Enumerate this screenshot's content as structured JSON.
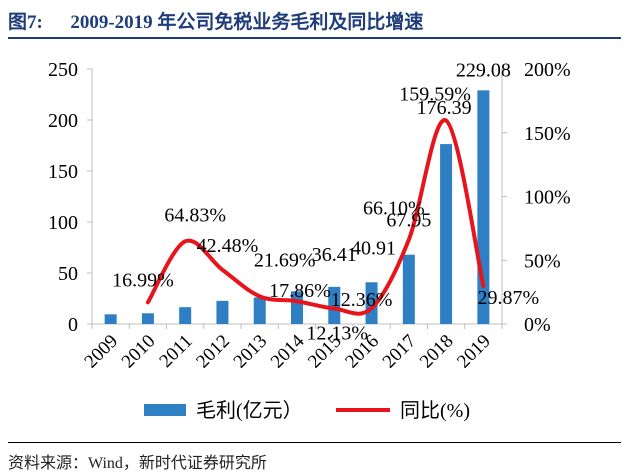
{
  "figure": {
    "label": "图7:",
    "title": "2009-2019 年公司免税业务毛利及同比增速",
    "title_color": "#1f3d7a",
    "rule_color": "#1f3d7a"
  },
  "source": "资料来源：Wind，新时代证券研究所",
  "chart_data": {
    "type": "bar",
    "categories": [
      "2009",
      "2010",
      "2011",
      "2012",
      "2013",
      "2014",
      "2015",
      "2016",
      "2017",
      "2018",
      "2019"
    ],
    "series": [
      {
        "name": "毛利(亿元）",
        "type": "bar",
        "axis": "left",
        "color": "#2f7fc4",
        "values": [
          9.5,
          10.5,
          16.5,
          22.7,
          26.0,
          32.0,
          36.41,
          40.91,
          67.95,
          176.39,
          229.08
        ],
        "labels": [
          "",
          "",
          "",
          "",
          "",
          "",
          "36.41",
          "40.91",
          "67.95",
          "176.39",
          "229.08"
        ]
      },
      {
        "name": "同比(%)",
        "type": "line",
        "axis": "right",
        "smooth": true,
        "color": "#e8141b",
        "values": [
          null,
          16.99,
          64.83,
          42.48,
          21.69,
          17.86,
          12.13,
          12.36,
          66.1,
          159.59,
          29.87
        ],
        "labels": [
          "",
          "16.99%",
          "64.83%",
          "42.48%",
          "21.69%",
          "17.86%",
          "12.13%",
          "12.36%",
          "66.10%",
          "159.59%",
          "29.87%"
        ]
      }
    ],
    "y_left": {
      "min": 0,
      "max": 250,
      "ticks": [
        "0",
        "50",
        "100",
        "150",
        "200",
        "250"
      ]
    },
    "y_right": {
      "min": 0,
      "max": 200,
      "ticks": [
        "0%",
        "50%",
        "100%",
        "150%",
        "200%"
      ]
    },
    "grid": false,
    "legend_position": "bottom"
  }
}
